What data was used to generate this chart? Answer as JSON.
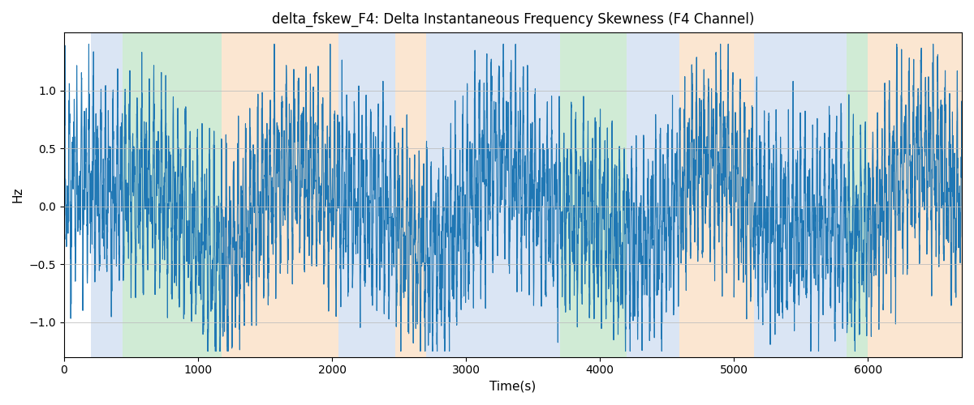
{
  "title": "delta_fskew_F4: Delta Instantaneous Frequency Skewness (F4 Channel)",
  "xlabel": "Time(s)",
  "ylabel": "Hz",
  "xlim": [
    0,
    6700
  ],
  "ylim": [
    -1.3,
    1.5
  ],
  "yticks": [
    -1.0,
    -0.5,
    0.0,
    0.5,
    1.0
  ],
  "line_color": "#1f77b4",
  "line_width": 0.8,
  "background_color": "#ffffff",
  "grid_color": "#bbbbbb",
  "bands": [
    {
      "start": 200,
      "end": 435,
      "color": "#aec6e8",
      "alpha": 0.45
    },
    {
      "start": 435,
      "end": 1175,
      "color": "#98d4a3",
      "alpha": 0.45
    },
    {
      "start": 1175,
      "end": 2050,
      "color": "#f7c899",
      "alpha": 0.45
    },
    {
      "start": 2050,
      "end": 2470,
      "color": "#aec6e8",
      "alpha": 0.45
    },
    {
      "start": 2470,
      "end": 2700,
      "color": "#f7c899",
      "alpha": 0.45
    },
    {
      "start": 2700,
      "end": 3700,
      "color": "#aec6e8",
      "alpha": 0.45
    },
    {
      "start": 3700,
      "end": 4200,
      "color": "#98d4a3",
      "alpha": 0.45
    },
    {
      "start": 4200,
      "end": 4590,
      "color": "#aec6e8",
      "alpha": 0.45
    },
    {
      "start": 4590,
      "end": 5150,
      "color": "#f7c899",
      "alpha": 0.45
    },
    {
      "start": 5150,
      "end": 5840,
      "color": "#aec6e8",
      "alpha": 0.45
    },
    {
      "start": 5840,
      "end": 6000,
      "color": "#98d4a3",
      "alpha": 0.45
    },
    {
      "start": 6000,
      "end": 6700,
      "color": "#f7c899",
      "alpha": 0.45
    }
  ],
  "seed": 2023,
  "n_points": 6700,
  "time_start": 0,
  "time_end": 6700,
  "figsize": [
    12.0,
    5.0
  ],
  "dpi": 100,
  "title_fontsize": 12,
  "label_fontsize": 11
}
